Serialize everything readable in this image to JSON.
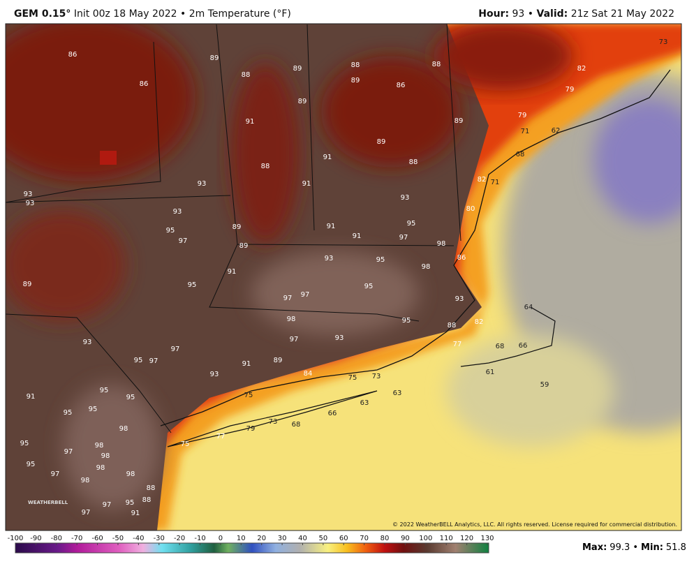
{
  "header": {
    "model": "GEM 0.15°",
    "description": "Init 00z 18 May 2022 • 2m Temperature (°F)",
    "hour_label": "Hour:",
    "hour": "93 •",
    "valid_label": "Valid:",
    "valid": "21z Sat 21 May 2022"
  },
  "map": {
    "labels": [
      86,
      86,
      89,
      88,
      89,
      88,
      89,
      88,
      86,
      91,
      89,
      89,
      89,
      88,
      88,
      91,
      91,
      93,
      93,
      93,
      93,
      95,
      97,
      89,
      89,
      91,
      91,
      93,
      95,
      97,
      98,
      91,
      93,
      95,
      98,
      95,
      95,
      97,
      97,
      89,
      98,
      97,
      93,
      95,
      93,
      97,
      95,
      97,
      91,
      89,
      93,
      84,
      91,
      95,
      95,
      95,
      95,
      98,
      98,
      95,
      97,
      98,
      95,
      98,
      98,
      97,
      98,
      88,
      88,
      95,
      97,
      91,
      97,
      86,
      93,
      82,
      88,
      77,
      68,
      66,
      61,
      59,
      64,
      82,
      71,
      80,
      79,
      71,
      68,
      62,
      79,
      82,
      73,
      77,
      79,
      73,
      68,
      66,
      63,
      73,
      75,
      63,
      75,
      75
    ],
    "copyright": "© 2022 WeatherBELL Analytics, LLC. All rights reserved. License required for commercial distribution.",
    "logo": "WEATHERBELL"
  },
  "colorbar": {
    "ticks": [
      -100,
      -90,
      -80,
      -70,
      -60,
      -50,
      -40,
      -30,
      -20,
      -10,
      0,
      10,
      20,
      30,
      40,
      50,
      60,
      70,
      80,
      90,
      100,
      110,
      120,
      130
    ]
  },
  "stats": {
    "max_label": "Max:",
    "max": "99.3 •",
    "min_label": "Min:",
    "min": "51.8"
  }
}
